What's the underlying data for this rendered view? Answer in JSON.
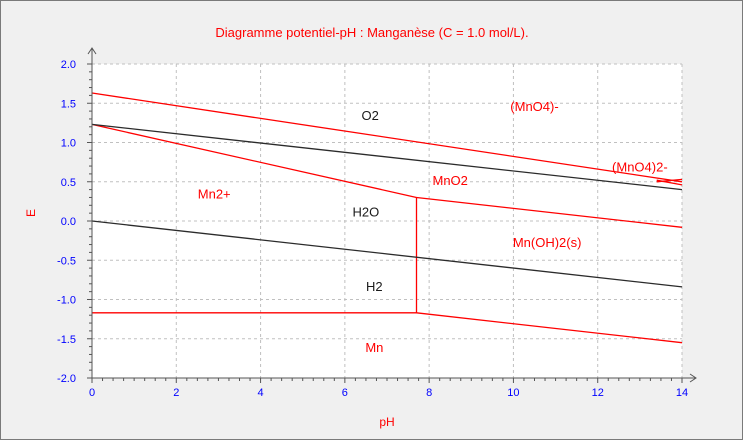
{
  "chart_data": {
    "type": "line",
    "title": "Diagramme potentiel-pH : Manganèse (C = 1.0 mol/L).",
    "xlabel": "pH",
    "ylabel": "E",
    "xlim": [
      0,
      14
    ],
    "ylim": [
      -2.0,
      2.0
    ],
    "x_ticks": [
      "0",
      "2",
      "4",
      "6",
      "8",
      "10",
      "12",
      "14"
    ],
    "y_ticks": [
      "2.0",
      "1.5",
      "1.0",
      "0.5",
      "0.0",
      "-0.5",
      "-1.0",
      "-1.5",
      "-2.0"
    ],
    "grid": true,
    "colors": {
      "title": "#ff0000",
      "axis_labels": "#ff0000",
      "ticks": "#0000ff",
      "manganese_lines": "#ff0000",
      "water_lines": "#2b2b2b",
      "grid": "#c0c0c0",
      "plot_background": "#ffffff"
    },
    "series": [
      {
        "style": "manganese",
        "x": [
          0,
          14
        ],
        "y": [
          1.63,
          0.5
        ]
      },
      {
        "style": "manganese",
        "x": [
          0,
          7.7
        ],
        "y": [
          1.23,
          0.3
        ]
      },
      {
        "style": "manganese",
        "x": [
          7.7,
          14
        ],
        "y": [
          0.3,
          -0.08
        ]
      },
      {
        "style": "manganese",
        "x": [
          7.7,
          7.7
        ],
        "y": [
          0.3,
          -1.17
        ]
      },
      {
        "style": "manganese",
        "x": [
          0,
          7.7
        ],
        "y": [
          -1.17,
          -1.17
        ]
      },
      {
        "style": "manganese",
        "x": [
          7.7,
          14
        ],
        "y": [
          -1.17,
          -1.55
        ]
      },
      {
        "style": "manganese",
        "x": [
          13.4,
          14
        ],
        "y": [
          0.52,
          0.46
        ]
      },
      {
        "style": "manganese",
        "x": [
          13.4,
          14
        ],
        "y": [
          0.5,
          0.53
        ]
      },
      {
        "style": "water",
        "x": [
          0,
          14
        ],
        "y": [
          1.23,
          0.4
        ]
      },
      {
        "style": "water",
        "x": [
          0,
          14
        ],
        "y": [
          0.0,
          -0.84
        ]
      }
    ],
    "annotations": [
      {
        "text": "O2",
        "x": 6.6,
        "y": 1.34,
        "style": "water"
      },
      {
        "text": "(MnO4)-",
        "x": 10.5,
        "y": 1.45,
        "style": "manganese"
      },
      {
        "text": "(MnO4)2-",
        "x": 13.0,
        "y": 0.68,
        "style": "manganese"
      },
      {
        "text": "Mn2+",
        "x": 2.9,
        "y": 0.34,
        "style": "manganese"
      },
      {
        "text": "MnO2",
        "x": 8.5,
        "y": 0.51,
        "style": "manganese"
      },
      {
        "text": "H2O",
        "x": 6.5,
        "y": 0.11,
        "style": "water"
      },
      {
        "text": "Mn(OH)2(s)",
        "x": 10.8,
        "y": -0.28,
        "style": "manganese"
      },
      {
        "text": "H2",
        "x": 6.7,
        "y": -0.84,
        "style": "water"
      },
      {
        "text": "Mn",
        "x": 6.7,
        "y": -1.62,
        "style": "manganese"
      }
    ]
  }
}
